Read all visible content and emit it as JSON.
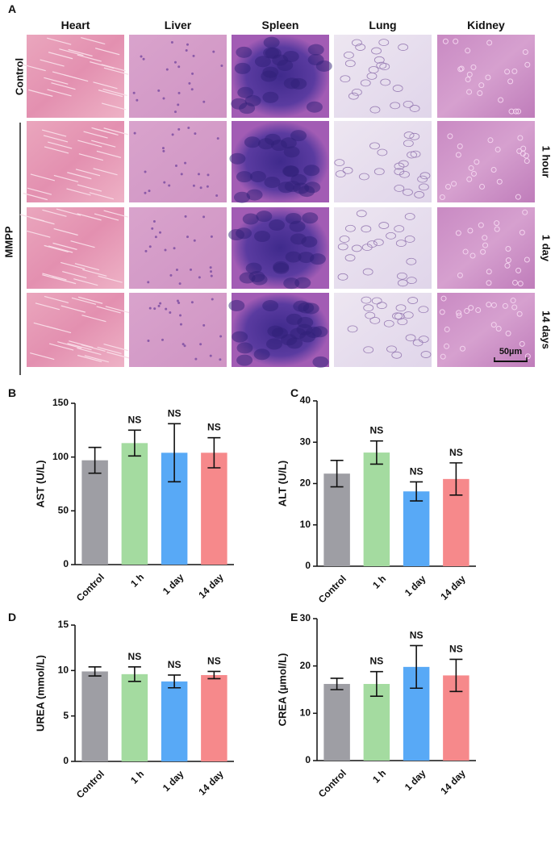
{
  "figure_a": {
    "panel": "A",
    "columns": [
      "Heart",
      "Liver",
      "Spleen",
      "Lung",
      "Kidney"
    ],
    "control_label": "Control",
    "group_label": "MMPP",
    "row_labels": [
      "1 hour",
      "1 day",
      "14 days"
    ],
    "scale_bar": "50µm"
  },
  "chart_data": [
    {
      "type": "bar",
      "panel": "B",
      "ylabel": "AST (U/L)",
      "categories": [
        "Control",
        "1 h",
        "1 day",
        "14 day"
      ],
      "values": [
        97,
        113,
        104,
        104
      ],
      "errors": [
        12,
        12,
        27,
        14
      ],
      "annotations": [
        null,
        "NS",
        "NS",
        "NS"
      ],
      "colors": [
        "#9e9ea4",
        "#a4dba0",
        "#58a9f6",
        "#f6898b"
      ],
      "ylim": [
        0,
        150
      ],
      "yticks": [
        0,
        50,
        100,
        150
      ]
    },
    {
      "type": "bar",
      "panel": "C",
      "ylabel": "ALT (U/L)",
      "categories": [
        "Control",
        "1 h",
        "1 day",
        "14 day"
      ],
      "values": [
        22.4,
        27.5,
        18.1,
        21.1
      ],
      "errors": [
        3.2,
        2.8,
        2.3,
        3.9
      ],
      "annotations": [
        null,
        "NS",
        "NS",
        "NS"
      ],
      "colors": [
        "#9e9ea4",
        "#a4dba0",
        "#58a9f6",
        "#f6898b"
      ],
      "ylim": [
        0,
        40
      ],
      "yticks": [
        0,
        10,
        20,
        30,
        40
      ]
    },
    {
      "type": "bar",
      "panel": "D",
      "ylabel": "UREA (mmol/L)",
      "categories": [
        "Control",
        "1 h",
        "1 day",
        "14 day"
      ],
      "values": [
        9.9,
        9.6,
        8.8,
        9.5
      ],
      "errors": [
        0.5,
        0.8,
        0.7,
        0.4
      ],
      "annotations": [
        null,
        "NS",
        "NS",
        "NS"
      ],
      "colors": [
        "#9e9ea4",
        "#a4dba0",
        "#58a9f6",
        "#f6898b"
      ],
      "ylim": [
        0,
        15
      ],
      "yticks": [
        0,
        5,
        10,
        15
      ]
    },
    {
      "type": "bar",
      "panel": "E",
      "ylabel": "CREA (µmol/L)",
      "categories": [
        "Control",
        "1 h",
        "1 day",
        "14 day"
      ],
      "values": [
        16.2,
        16.2,
        19.8,
        18.0
      ],
      "errors": [
        1.2,
        2.6,
        4.5,
        3.4
      ],
      "annotations": [
        null,
        "NS",
        "NS",
        "NS"
      ],
      "colors": [
        "#9e9ea4",
        "#a4dba0",
        "#58a9f6",
        "#f6898b"
      ],
      "ylim": [
        0,
        30
      ],
      "yticks": [
        0,
        10,
        20,
        30
      ]
    }
  ]
}
